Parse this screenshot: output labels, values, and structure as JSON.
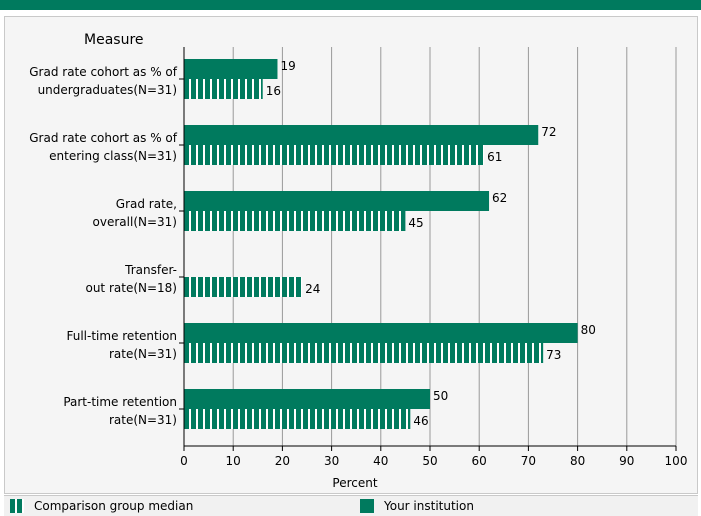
{
  "colors": {
    "accent": "#007a5e",
    "stripe_gap": "#ffffff",
    "grid": "#999999"
  },
  "chart_data": {
    "type": "bar",
    "orientation": "horizontal",
    "title": "",
    "ylabel": "Measure",
    "xlabel": "Percent",
    "xlim": [
      0,
      100
    ],
    "xticks": [
      0,
      10,
      20,
      30,
      40,
      50,
      60,
      70,
      80,
      90,
      100
    ],
    "grid": "vertical",
    "categories": [
      [
        "Grad rate cohort as % of",
        "undergraduates(N=31)"
      ],
      [
        "Grad rate cohort as % of",
        "entering class(N=31)"
      ],
      [
        "Grad rate,",
        "overall(N=31)"
      ],
      [
        "Transfer-",
        "out rate(N=18)"
      ],
      [
        "Full-time retention",
        "rate(N=31)"
      ],
      [
        "Part-time retention",
        "rate(N=31)"
      ]
    ],
    "series": [
      {
        "name": "Your institution",
        "style": "solid",
        "values": [
          19,
          72,
          62,
          null,
          80,
          50
        ]
      },
      {
        "name": "Comparison group median",
        "style": "striped",
        "values": [
          16,
          61,
          45,
          24,
          73,
          46
        ]
      }
    ]
  },
  "legend": {
    "comparison": "Comparison group median",
    "institution": "Your institution"
  }
}
